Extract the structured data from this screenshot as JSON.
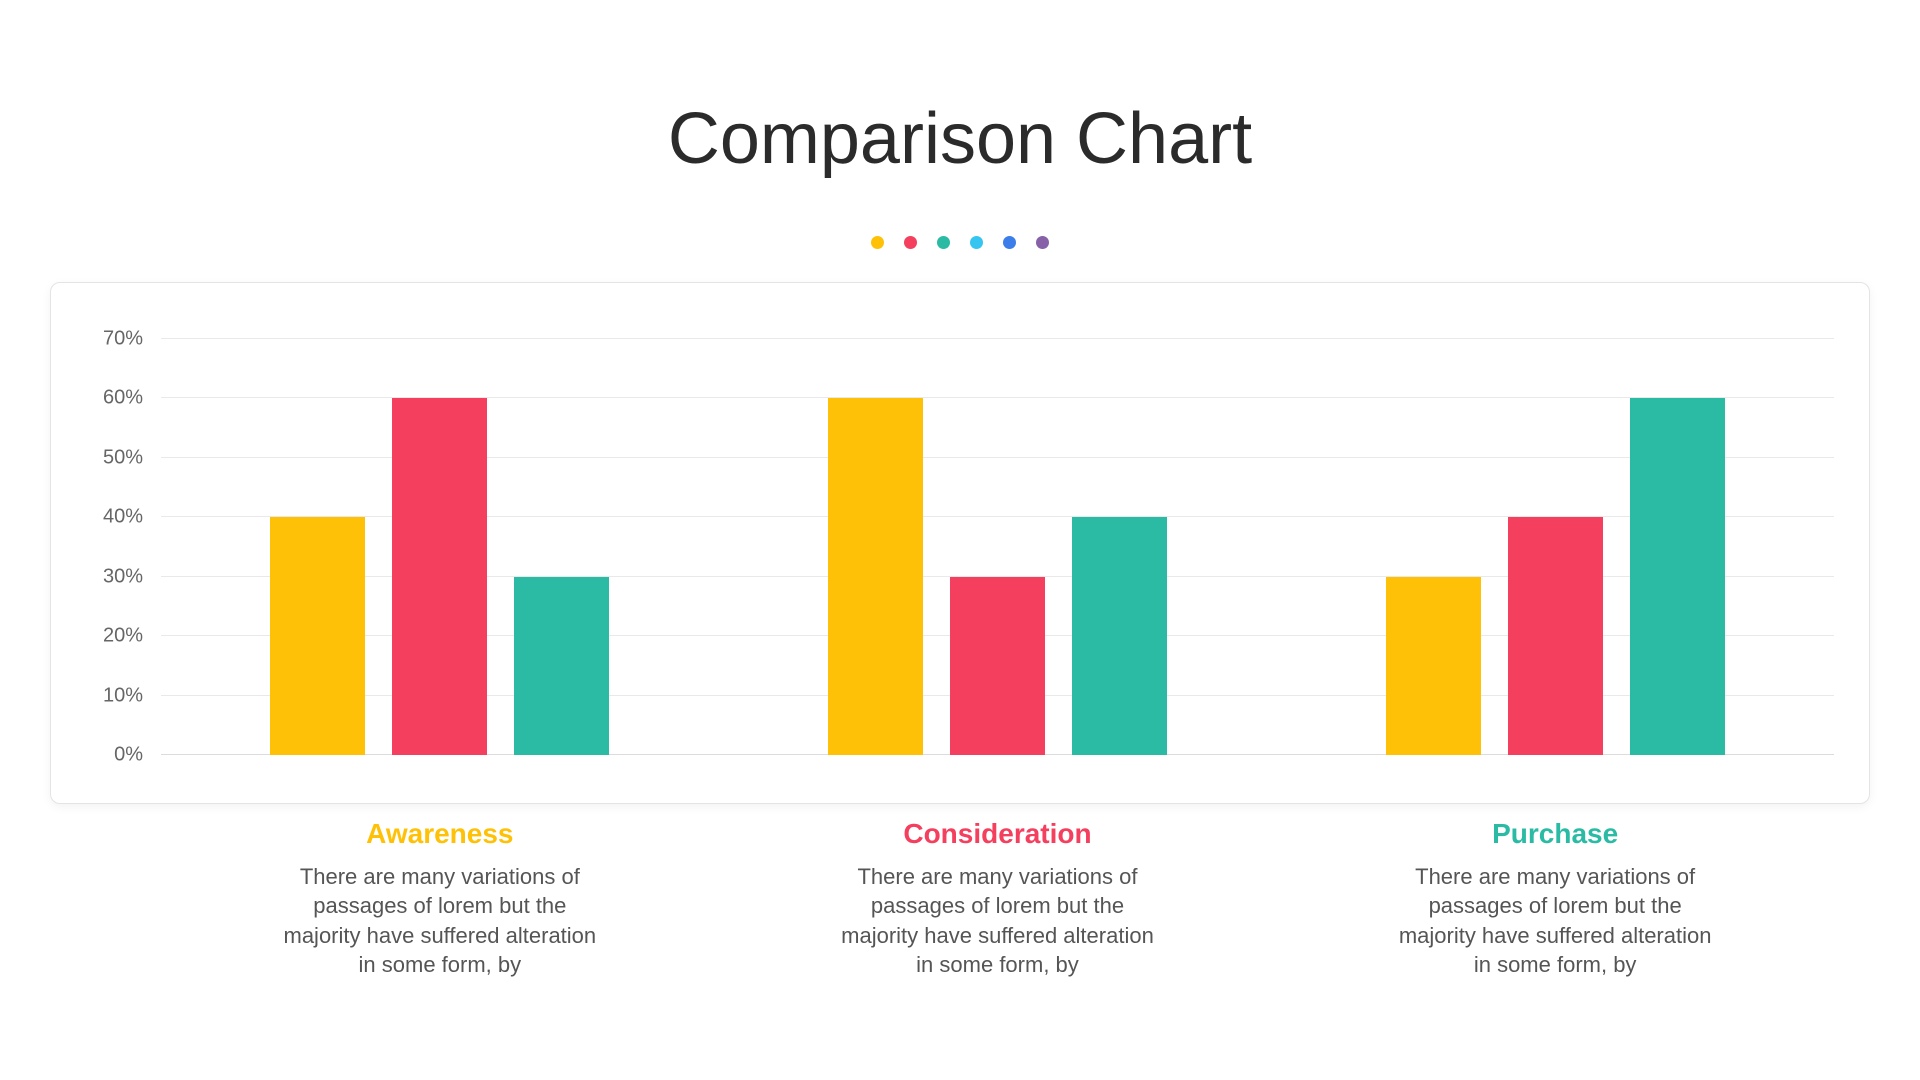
{
  "title": "Comparison Chart",
  "accent_dots": [
    "#FFC107",
    "#F43F5E",
    "#2BBBA4",
    "#36C5F0",
    "#3B7DE9",
    "#8761A8"
  ],
  "chart_data": {
    "type": "bar",
    "title": "Comparison Chart",
    "categories": [
      "Awareness",
      "Consideration",
      "Purchase"
    ],
    "series": [
      {
        "name": "yellow",
        "color": "#FFC107",
        "values": [
          40,
          60,
          30
        ]
      },
      {
        "name": "pink",
        "color": "#F43F5E",
        "values": [
          60,
          30,
          40
        ]
      },
      {
        "name": "teal",
        "color": "#2BBBA4",
        "values": [
          30,
          40,
          60
        ]
      }
    ],
    "ylim": [
      0,
      70
    ],
    "ytick_step": 10,
    "ytick_labels": [
      "0%",
      "10%",
      "20%",
      "30%",
      "40%",
      "50%",
      "60%",
      "70%"
    ],
    "grid": true,
    "legend_position": "none"
  },
  "sections": [
    {
      "heading": "Awareness",
      "color": "#FFC107",
      "body": "There are many variations of passages of lorem but the majority have suffered alteration in some form, by"
    },
    {
      "heading": "Consideration",
      "color": "#F43F5E",
      "body": "There are many variations of passages of lorem but the majority have suffered alteration in some form, by"
    },
    {
      "heading": "Purchase",
      "color": "#2BBBA4",
      "body": "There are many variations of passages of lorem but the majority have suffered alteration in some form, by"
    }
  ]
}
